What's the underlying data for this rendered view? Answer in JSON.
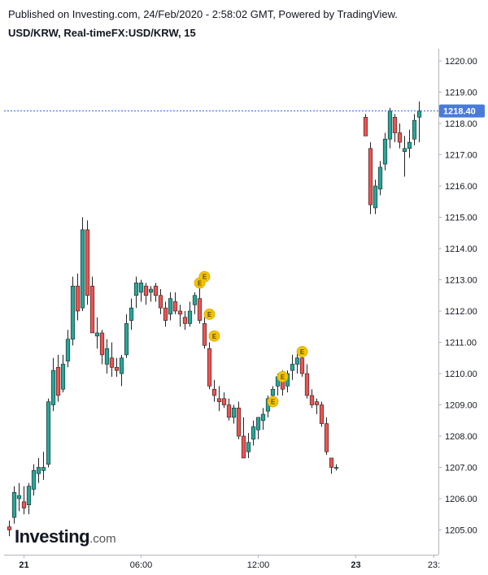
{
  "header": {
    "published": "Published on Investing.com, 24/Feb/2020 - 2:58:02 GMT, Powered by TradingView.",
    "symbol": "USD/KRW, Real-timeFX:USD/KRW, 15"
  },
  "logo": {
    "main": "Investing",
    "suffix": ".com"
  },
  "colors": {
    "up": "#26a69a",
    "down": "#ef5350",
    "price_line": "#2962ff",
    "price_label_bg": "#4a7bd8",
    "earnings": "#f5c400",
    "axis": "#b2b5be"
  },
  "chart_data": {
    "type": "candlestick",
    "ylim": [
      1204.0,
      1221.0
    ],
    "yticks": [
      "1220.00",
      "1219.00",
      "1218.00",
      "1217.00",
      "1216.00",
      "1215.00",
      "1214.00",
      "1213.00",
      "1212.00",
      "1211.00",
      "1210.00",
      "1209.00",
      "1208.00",
      "1207.00",
      "1206.00",
      "1205.00"
    ],
    "xticks": [
      {
        "label": "21",
        "index": 3,
        "bold": true
      },
      {
        "label": "06:00",
        "index": 27,
        "bold": false
      },
      {
        "label": "12:00",
        "index": 51,
        "bold": false
      },
      {
        "label": "23",
        "index": 71,
        "bold": true
      },
      {
        "label": "23:",
        "index": 87,
        "bold": false
      }
    ],
    "last_price": "1218.40",
    "candles": [
      [
        1205.1,
        1205.3,
        1204.8,
        1205.0
      ],
      [
        1205.4,
        1206.4,
        1205.2,
        1206.2
      ],
      [
        1206.0,
        1206.5,
        1205.6,
        1206.1
      ],
      [
        1205.9,
        1206.4,
        1205.5,
        1205.7
      ],
      [
        1205.8,
        1206.5,
        1205.5,
        1206.4
      ],
      [
        1206.3,
        1207.1,
        1206.1,
        1206.9
      ],
      [
        1206.8,
        1207.3,
        1206.5,
        1207.0
      ],
      [
        1206.9,
        1207.5,
        1206.6,
        1207.0
      ],
      [
        1207.1,
        1209.2,
        1207.0,
        1209.1
      ],
      [
        1209.0,
        1210.5,
        1208.8,
        1210.1
      ],
      [
        1210.2,
        1210.6,
        1209.1,
        1209.3
      ],
      [
        1209.5,
        1210.6,
        1209.4,
        1210.3
      ],
      [
        1210.4,
        1211.4,
        1210.2,
        1211.1
      ],
      [
        1211.1,
        1213.1,
        1210.9,
        1212.8
      ],
      [
        1212.8,
        1213.2,
        1211.7,
        1212.0
      ],
      [
        1212.1,
        1215.0,
        1212.0,
        1214.6
      ],
      [
        1214.6,
        1214.9,
        1212.2,
        1212.5
      ],
      [
        1212.8,
        1213.1,
        1211.4,
        1211.3
      ],
      [
        1211.2,
        1211.8,
        1210.8,
        1211.3
      ],
      [
        1211.3,
        1211.4,
        1210.3,
        1210.6
      ],
      [
        1210.3,
        1211.1,
        1210.0,
        1210.8
      ],
      [
        1210.5,
        1211.0,
        1209.9,
        1210.2
      ],
      [
        1210.2,
        1210.5,
        1209.9,
        1210.1
      ],
      [
        1210.0,
        1210.6,
        1209.6,
        1210.5
      ],
      [
        1210.6,
        1211.9,
        1210.5,
        1211.6
      ],
      [
        1211.7,
        1212.4,
        1211.4,
        1212.1
      ],
      [
        1212.5,
        1213.1,
        1212.1,
        1212.9
      ],
      [
        1212.6,
        1213.0,
        1212.3,
        1212.9
      ],
      [
        1212.8,
        1212.9,
        1212.2,
        1212.5
      ],
      [
        1212.6,
        1212.8,
        1212.3,
        1212.7
      ],
      [
        1212.8,
        1212.9,
        1212.3,
        1212.5
      ],
      [
        1212.5,
        1212.7,
        1211.9,
        1212.1
      ],
      [
        1212.1,
        1212.3,
        1211.5,
        1211.7
      ],
      [
        1211.9,
        1212.6,
        1211.7,
        1212.4
      ],
      [
        1212.3,
        1212.6,
        1211.9,
        1212.0
      ],
      [
        1212.0,
        1212.2,
        1211.5,
        1211.9
      ],
      [
        1211.8,
        1212.0,
        1211.4,
        1211.6
      ],
      [
        1211.6,
        1212.3,
        1211.5,
        1212.0
      ],
      [
        1212.2,
        1212.6,
        1211.9,
        1212.5
      ],
      [
        1212.4,
        1212.8,
        1211.6,
        1211.7
      ],
      [
        1211.6,
        1211.8,
        1210.8,
        1210.9
      ],
      [
        1210.8,
        1211.0,
        1209.5,
        1209.6
      ],
      [
        1209.5,
        1209.8,
        1209.1,
        1209.3
      ],
      [
        1209.2,
        1209.6,
        1208.8,
        1209.1
      ],
      [
        1209.2,
        1209.4,
        1208.9,
        1209.0
      ],
      [
        1209.0,
        1209.2,
        1208.5,
        1208.6
      ],
      [
        1208.6,
        1209.0,
        1208.4,
        1208.9
      ],
      [
        1208.9,
        1209.1,
        1207.9,
        1208.0
      ],
      [
        1208.0,
        1208.6,
        1207.3,
        1207.3
      ],
      [
        1207.5,
        1208.1,
        1207.3,
        1207.8
      ],
      [
        1207.9,
        1208.5,
        1207.7,
        1208.3
      ],
      [
        1208.2,
        1208.6,
        1207.9,
        1208.6
      ],
      [
        1208.5,
        1208.9,
        1208.2,
        1208.7
      ],
      [
        1208.8,
        1209.3,
        1208.6,
        1209.2
      ],
      [
        1209.3,
        1209.6,
        1209.1,
        1209.5
      ],
      [
        1209.6,
        1210.0,
        1209.3,
        1209.9
      ],
      [
        1209.9,
        1210.1,
        1209.3,
        1209.5
      ],
      [
        1209.6,
        1210.1,
        1209.4,
        1210.0
      ],
      [
        1210.1,
        1210.6,
        1209.8,
        1210.3
      ],
      [
        1210.3,
        1210.7,
        1210.0,
        1210.5
      ],
      [
        1210.5,
        1210.7,
        1209.9,
        1210.0
      ],
      [
        1210.0,
        1210.3,
        1209.2,
        1209.3
      ],
      [
        1209.3,
        1209.5,
        1208.9,
        1209.0
      ],
      [
        1209.1,
        1209.2,
        1208.7,
        1209.0
      ],
      [
        1209.0,
        1209.1,
        1208.3,
        1208.4
      ],
      [
        1208.4,
        1208.6,
        1207.4,
        1207.5
      ],
      [
        1207.3,
        1207.3,
        1206.8,
        1207.0
      ],
      [
        1207.0,
        1207.1,
        1206.9,
        1207.0
      ],
      [
        null,
        null,
        null,
        null
      ],
      [
        null,
        null,
        null,
        null
      ],
      [
        null,
        null,
        null,
        null
      ],
      [
        null,
        null,
        null,
        null
      ],
      [
        null,
        null,
        null,
        null
      ],
      [
        1218.2,
        1218.3,
        1217.6,
        1217.6
      ],
      [
        1217.2,
        1217.4,
        1215.1,
        1215.4
      ],
      [
        1215.3,
        1216.2,
        1215.1,
        1216.0
      ],
      [
        1215.9,
        1216.8,
        1215.7,
        1216.6
      ],
      [
        1216.7,
        1217.7,
        1216.5,
        1217.5
      ],
      [
        1217.5,
        1218.5,
        1217.2,
        1218.4
      ],
      [
        1218.2,
        1218.3,
        1217.4,
        1217.7
      ],
      [
        1217.7,
        1218.0,
        1217.2,
        1217.4
      ],
      [
        1217.1,
        1217.6,
        1216.3,
        1217.2
      ],
      [
        1217.2,
        1217.8,
        1216.9,
        1217.4
      ],
      [
        1217.5,
        1218.3,
        1217.3,
        1218.1
      ],
      [
        1218.2,
        1218.7,
        1217.4,
        1218.4
      ]
    ],
    "earnings_markers": [
      {
        "index": 39,
        "price": 1212.9,
        "label": "E"
      },
      {
        "index": 40,
        "price": 1213.1,
        "label": "E"
      },
      {
        "index": 41,
        "price": 1211.9,
        "label": "E"
      },
      {
        "index": 42,
        "price": 1211.2,
        "label": "E"
      },
      {
        "index": 54,
        "price": 1209.1,
        "label": "E"
      },
      {
        "index": 56,
        "price": 1209.9,
        "label": "E"
      },
      {
        "index": 60,
        "price": 1210.7,
        "label": "E"
      }
    ]
  }
}
